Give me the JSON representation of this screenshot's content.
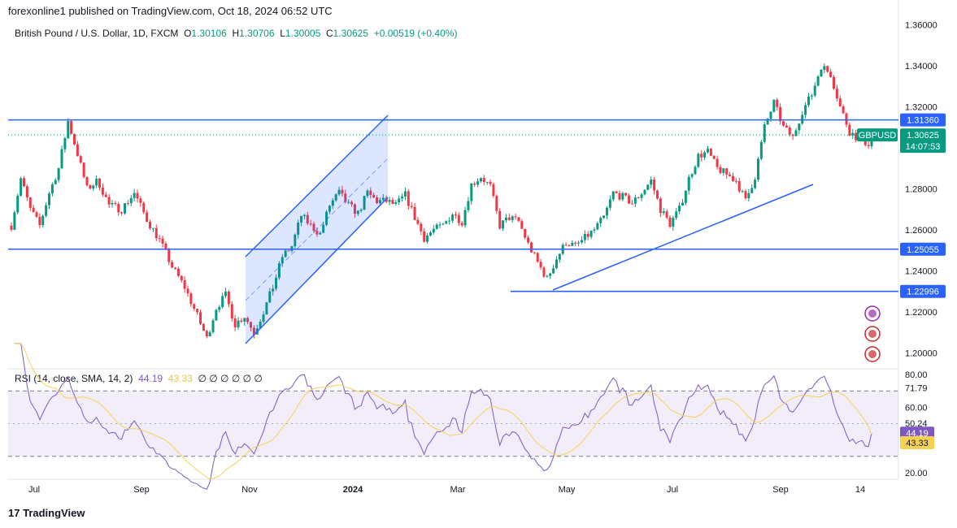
{
  "header": {
    "published": "forexonline1 published on TradingView.com, Oct 18, 2024 06:52 UTC"
  },
  "symbol": {
    "name": "British Pound / U.S. Dollar, 1D, FXCM",
    "o_label": "O",
    "o": "1.30106",
    "h_label": "H",
    "h": "1.30706",
    "l_label": "L",
    "l": "1.30005",
    "c_label": "C",
    "c": "1.30625",
    "change": "+0.00519 (+0.40%)",
    "ticker": "GBPUSD",
    "last_price": "1.30625",
    "countdown": "14:07:53"
  },
  "rsi_legend": {
    "label": "RSI (14, close, SMA, 14, 2)",
    "rsi_value": "44.19",
    "sma_value": "43.33",
    "placeholders": "∅ ∅ ∅ ∅ ∅ ∅"
  },
  "footer": {
    "brand": "TradingView"
  },
  "colors": {
    "up": "#089981",
    "down": "#f23645",
    "level": "#2962ff",
    "rsi": "#7e57c2",
    "rsi_sma": "#f7d154",
    "channel_fill": "#2962ff"
  },
  "chart_data": [
    {
      "type": "candlestick",
      "title": "British Pound / U.S. Dollar, 1D, FXCM",
      "x_tick_labels": [
        "Jul",
        "Sep",
        "Nov",
        "2024",
        "Mar",
        "May",
        "Jul",
        "Sep",
        "14"
      ],
      "y_tick_labels": [
        "1.36000",
        "1.34000",
        "1.32000",
        "1.30000",
        "1.28000",
        "1.26000",
        "1.24000",
        "1.22000",
        "1.20000"
      ],
      "ylim": [
        1.193,
        1.361
      ],
      "price_path": [
        [
          0,
          1.262
        ],
        [
          6,
          1.285
        ],
        [
          12,
          1.27
        ],
        [
          18,
          1.262
        ],
        [
          24,
          1.278
        ],
        [
          30,
          1.29
        ],
        [
          36,
          1.313
        ],
        [
          42,
          1.297
        ],
        [
          48,
          1.28
        ],
        [
          55,
          1.284
        ],
        [
          62,
          1.272
        ],
        [
          70,
          1.27
        ],
        [
          78,
          1.278
        ],
        [
          86,
          1.265
        ],
        [
          94,
          1.255
        ],
        [
          102,
          1.242
        ],
        [
          110,
          1.232
        ],
        [
          118,
          1.218
        ],
        [
          124,
          1.207
        ],
        [
          130,
          1.222
        ],
        [
          136,
          1.228
        ],
        [
          142,
          1.214
        ],
        [
          148,
          1.218
        ],
        [
          154,
          1.21
        ],
        [
          160,
          1.22
        ],
        [
          166,
          1.232
        ],
        [
          172,
          1.247
        ],
        [
          178,
          1.252
        ],
        [
          184,
          1.267
        ],
        [
          190,
          1.262
        ],
        [
          196,
          1.258
        ],
        [
          202,
          1.272
        ],
        [
          208,
          1.278
        ],
        [
          214,
          1.272
        ],
        [
          220,
          1.268
        ],
        [
          226,
          1.278
        ],
        [
          232,
          1.274
        ],
        [
          238,
          1.274
        ],
        [
          244,
          1.272
        ],
        [
          250,
          1.277
        ],
        [
          256,
          1.266
        ],
        [
          262,
          1.256
        ],
        [
          268,
          1.26
        ],
        [
          274,
          1.262
        ],
        [
          280,
          1.268
        ],
        [
          286,
          1.264
        ],
        [
          292,
          1.282
        ],
        [
          298,
          1.286
        ],
        [
          304,
          1.281
        ],
        [
          310,
          1.262
        ],
        [
          316,
          1.266
        ],
        [
          322,
          1.264
        ],
        [
          328,
          1.253
        ],
        [
          334,
          1.244
        ],
        [
          340,
          1.236
        ],
        [
          346,
          1.246
        ],
        [
          352,
          1.254
        ],
        [
          358,
          1.252
        ],
        [
          364,
          1.256
        ],
        [
          370,
          1.26
        ],
        [
          376,
          1.266
        ],
        [
          382,
          1.278
        ],
        [
          388,
          1.276
        ],
        [
          394,
          1.273
        ],
        [
          400,
          1.278
        ],
        [
          406,
          1.284
        ],
        [
          412,
          1.27
        ],
        [
          418,
          1.263
        ],
        [
          424,
          1.27
        ],
        [
          430,
          1.285
        ],
        [
          436,
          1.296
        ],
        [
          442,
          1.298
        ],
        [
          448,
          1.29
        ],
        [
          454,
          1.287
        ],
        [
          460,
          1.284
        ],
        [
          466,
          1.274
        ],
        [
          472,
          1.286
        ],
        [
          478,
          1.31
        ],
        [
          484,
          1.322
        ],
        [
          490,
          1.31
        ],
        [
          496,
          1.305
        ],
        [
          502,
          1.318
        ],
        [
          508,
          1.326
        ],
        [
          514,
          1.34
        ],
        [
          520,
          1.336
        ],
        [
          526,
          1.32
        ],
        [
          532,
          1.308
        ],
        [
          538,
          1.304
        ],
        [
          544,
          1.302
        ],
        [
          546,
          1.30625
        ]
      ],
      "support_resistance_levels": [
        1.3136,
        1.25055,
        1.22996
      ],
      "price_labels": [
        "1.31360",
        "1.25055",
        "1.22996"
      ]
    },
    {
      "type": "line",
      "title": "RSI (14, close, SMA, 14, 2)",
      "y_tick_labels": [
        "80.00",
        "71.79",
        "60.00",
        "50.24",
        "44.19",
        "43.33",
        "20.00"
      ],
      "bands": [
        30,
        50,
        70
      ],
      "ylim": [
        17,
        83
      ],
      "rsi_last": 44.19,
      "sma_last": 43.33
    }
  ]
}
